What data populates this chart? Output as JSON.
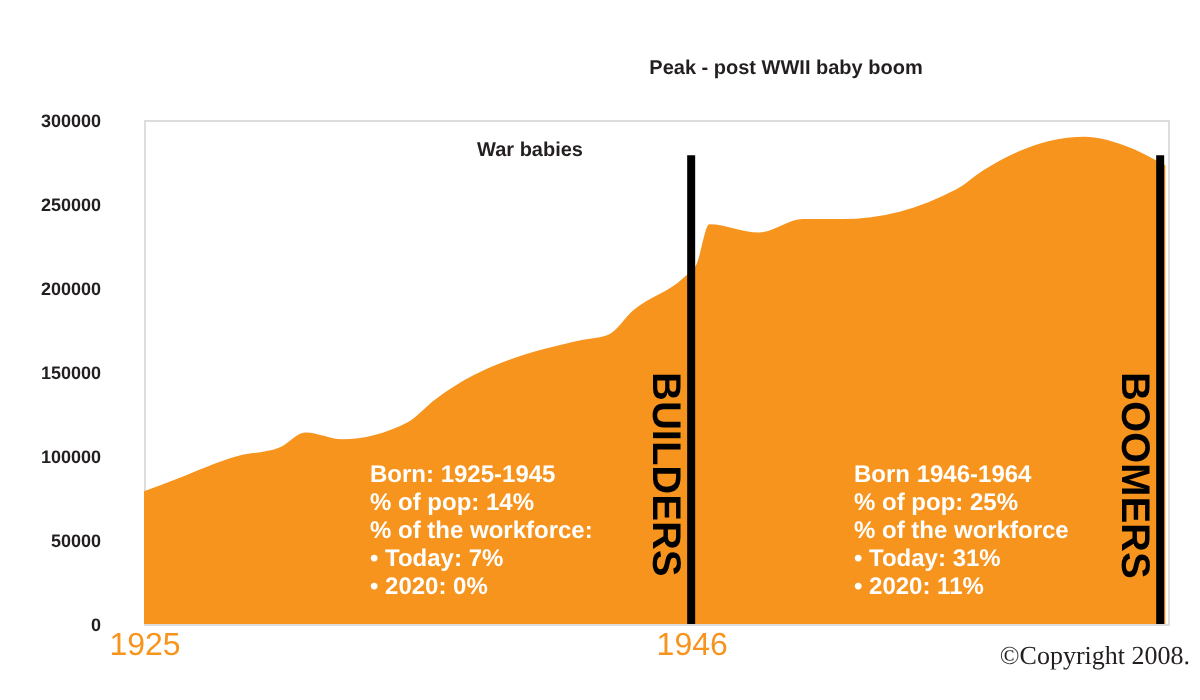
{
  "chart_data": {
    "type": "area",
    "x": [
      1925,
      1926.2,
      1928.6,
      1930.2,
      1931.2,
      1932.6,
      1935.1,
      1936.2,
      1941.8,
      1942.8,
      1943.8,
      1945.7,
      1946.2,
      1946.7,
      1948.6,
      1950.3,
      1951.8,
      1956.2,
      1957.2,
      1961.1,
      1962.6,
      1964.2
    ],
    "series": [
      {
        "color": "#f7941d",
        "values": [
          79000,
          86000,
          100000,
          105000,
          114000,
          110000,
          120000,
          134000,
          169000,
          172000,
          187000,
          206000,
          214000,
          238000,
          233000,
          241000,
          241000,
          259000,
          270000,
          290000,
          285000,
          273000
        ]
      }
    ],
    "xlim": [
      1925,
      1964.3
    ],
    "xticks": [
      1925,
      1946
    ],
    "ylim": [
      0,
      300000
    ],
    "yticks": [
      0,
      50000,
      100000,
      150000,
      200000,
      250000,
      300000
    ],
    "grid": false,
    "ref_lines": [
      {
        "axis": "x",
        "value": 1946,
        "label": "BUILDERS",
        "color": "#000000"
      },
      {
        "axis": "x",
        "value": 1964,
        "label": "BOOMERS",
        "color": "#000000"
      }
    ],
    "annotations": [
      "War babies",
      "Peak - post WWII baby boom",
      "Born: 1925-1945\n% of pop: 14%\n% of the workforce:\n      • Today: 7%\n      • 2020: 0%",
      "Born 1946-1964\n% of pop: 25%\n% of the workforce\n      • Today: 31%\n      • 2020: 11%",
      "©Copyright 2008."
    ]
  }
}
